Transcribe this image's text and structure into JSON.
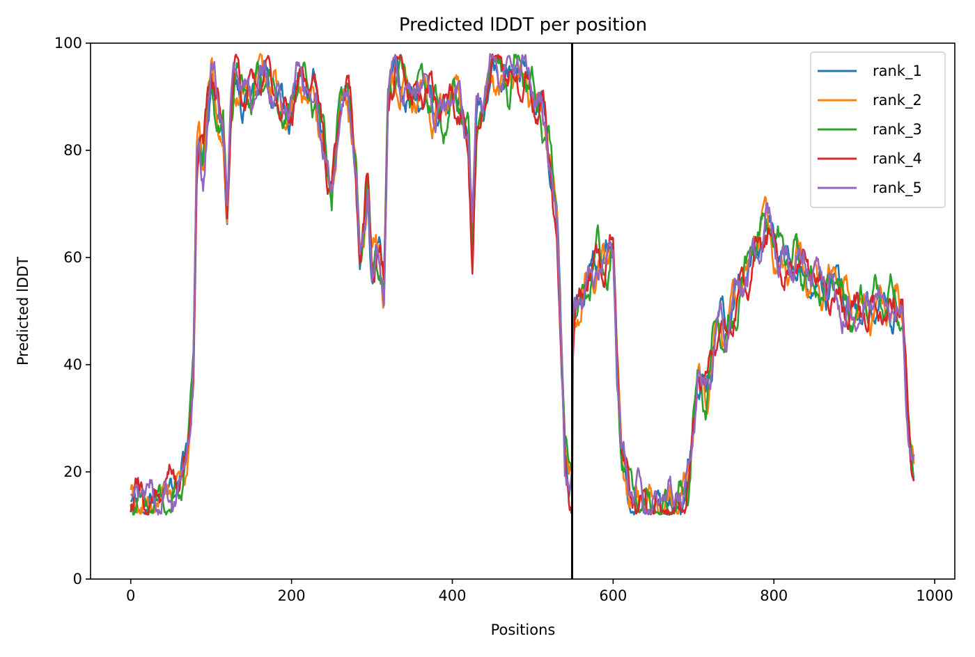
{
  "chart_data": {
    "type": "line",
    "title": "Predicted lDDT per position",
    "xlabel": "Positions",
    "ylabel": "Predicted lDDT",
    "xlim": [
      -50,
      1025
    ],
    "ylim": [
      0,
      100
    ],
    "xticks": [
      0,
      200,
      400,
      600,
      800,
      1000
    ],
    "yticks": [
      0,
      20,
      40,
      60,
      80,
      100
    ],
    "grid": false,
    "legend": "top-right",
    "vline_x": 549,
    "n_positions": 975,
    "series": [
      {
        "name": "rank_1",
        "color": "#1f77b4"
      },
      {
        "name": "rank_2",
        "color": "#ff7f0e"
      },
      {
        "name": "rank_3",
        "color": "#2ca02c"
      },
      {
        "name": "rank_4",
        "color": "#d62728"
      },
      {
        "name": "rank_5",
        "color": "#9467bd"
      }
    ],
    "profile_x": [
      0,
      5,
      10,
      20,
      30,
      40,
      50,
      60,
      65,
      70,
      75,
      78,
      82,
      85,
      90,
      95,
      100,
      105,
      110,
      115,
      120,
      125,
      130,
      140,
      150,
      160,
      170,
      180,
      190,
      200,
      210,
      220,
      230,
      240,
      245,
      250,
      260,
      270,
      275,
      280,
      285,
      290,
      295,
      300,
      305,
      310,
      315,
      320,
      330,
      340,
      350,
      360,
      370,
      380,
      390,
      400,
      410,
      420,
      425,
      430,
      440,
      450,
      460,
      470,
      480,
      490,
      500,
      510,
      515,
      520,
      530,
      535,
      540,
      545,
      549,
      550,
      555,
      560,
      570,
      580,
      590,
      600,
      605,
      610,
      620,
      630,
      640,
      650,
      660,
      670,
      680,
      690,
      695,
      700,
      705,
      710,
      715,
      720,
      725,
      730,
      740,
      750,
      760,
      770,
      780,
      790,
      800,
      810,
      820,
      830,
      840,
      850,
      860,
      870,
      880,
      890,
      900,
      910,
      920,
      930,
      940,
      950,
      960,
      965,
      970,
      975
    ],
    "profile_y": [
      16,
      15,
      14,
      14,
      14,
      14,
      16,
      18,
      20,
      24,
      30,
      40,
      78,
      82,
      76,
      88,
      94,
      90,
      86,
      84,
      68,
      88,
      94,
      90,
      88,
      94,
      92,
      90,
      86,
      88,
      94,
      92,
      90,
      82,
      74,
      70,
      88,
      92,
      86,
      78,
      60,
      64,
      74,
      58,
      62,
      60,
      54,
      90,
      94,
      92,
      90,
      92,
      90,
      88,
      86,
      90,
      88,
      82,
      62,
      84,
      88,
      96,
      94,
      92,
      96,
      94,
      90,
      88,
      84,
      80,
      66,
      45,
      24,
      18,
      16,
      44,
      50,
      52,
      56,
      60,
      58,
      62,
      40,
      24,
      17,
      15,
      14,
      14,
      14,
      14,
      14,
      16,
      20,
      30,
      38,
      36,
      34,
      38,
      44,
      48,
      46,
      50,
      56,
      58,
      62,
      66,
      62,
      60,
      58,
      60,
      58,
      56,
      54,
      56,
      54,
      52,
      50,
      52,
      50,
      52,
      50,
      52,
      50,
      36,
      24,
      20
    ]
  }
}
